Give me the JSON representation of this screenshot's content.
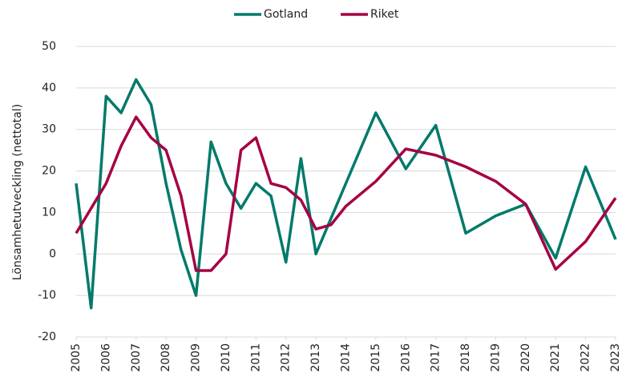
{
  "chart_data": {
    "type": "line",
    "y_label": "Lönsamhetutveckling (nettotal)",
    "x": [
      2005,
      2005.5,
      2006,
      2006.5,
      2007,
      2007.5,
      2008,
      2008.5,
      2009,
      2009.5,
      2010,
      2010.5,
      2011,
      2011.5,
      2012,
      2012.5,
      2013,
      2013.5,
      2014,
      2015,
      2016,
      2017,
      2018,
      2019,
      2020,
      2021,
      2022,
      2023
    ],
    "series": [
      {
        "name": "Gotland",
        "color": "#007a6a",
        "values": [
          17,
          -13,
          38,
          34,
          42,
          36,
          17,
          1,
          -10,
          27,
          17,
          11,
          17,
          14,
          -2,
          23,
          0,
          8.5,
          17,
          34,
          20.5,
          31,
          5,
          9.2,
          12,
          -1,
          21,
          3.5
        ]
      },
      {
        "name": "Riket",
        "color": "#a50044",
        "values": [
          5,
          11,
          17,
          26,
          33,
          28,
          25,
          14,
          -4,
          -4,
          0,
          25,
          28,
          17,
          16,
          13,
          6,
          7,
          11.5,
          17.5,
          25.3,
          23.8,
          21,
          17.5,
          12,
          -3.7,
          3,
          13.5
        ]
      }
    ],
    "xlim": [
      2005,
      2023
    ],
    "xticks": [
      2005,
      2006,
      2007,
      2008,
      2009,
      2010,
      2011,
      2012,
      2013,
      2014,
      2015,
      2016,
      2017,
      2018,
      2019,
      2020,
      2021,
      2022,
      2023
    ],
    "ylim": [
      -20,
      50
    ],
    "yticks": [
      -20,
      -10,
      0,
      10,
      20,
      30,
      40,
      50
    ],
    "grid": true,
    "legend": "top"
  }
}
